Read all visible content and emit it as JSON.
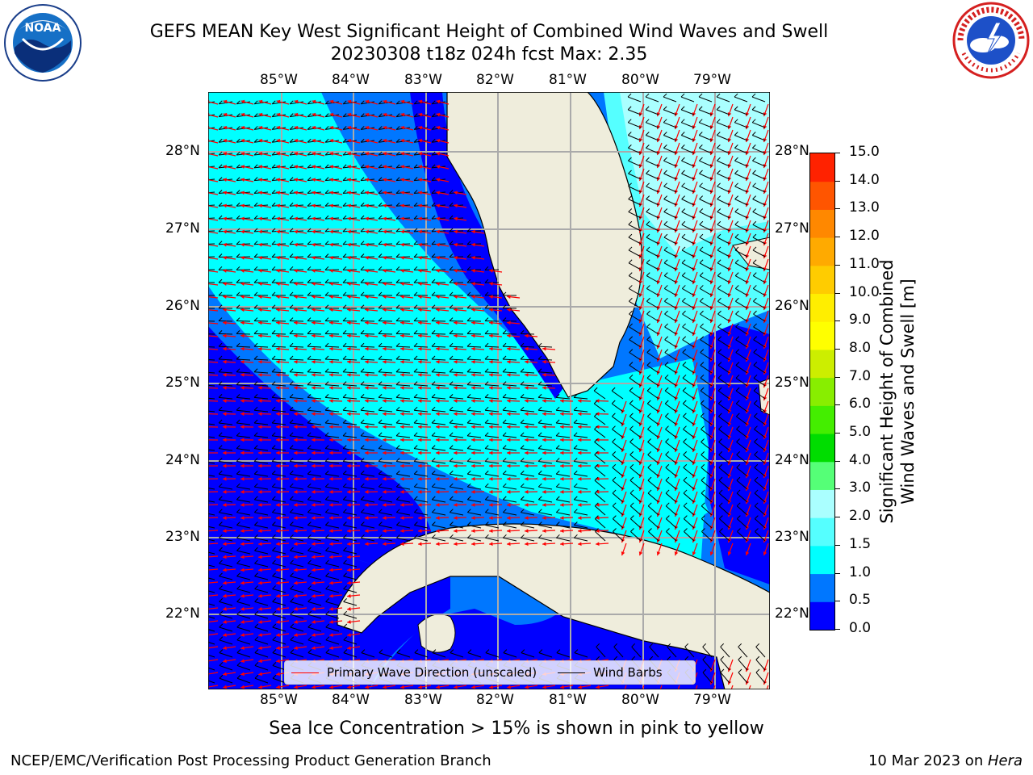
{
  "title_line1": "GEFS MEAN Key West Significant Height of Combined Wind Waves and Swell",
  "title_line2": "20230308 t18z 024h fcst   Max: 2.35",
  "logos": {
    "left": "NOAA",
    "right": "NATIONAL WEATHER SERVICE"
  },
  "map": {
    "lon_labels": [
      "85°W",
      "84°W",
      "83°W",
      "82°W",
      "81°W",
      "80°W",
      "79°W"
    ],
    "lat_labels": [
      "28°N",
      "27°N",
      "26°N",
      "25°N",
      "24°N",
      "23°N",
      "22°N"
    ],
    "land_color": "#efeddc",
    "legend": {
      "wave_label": "Primary Wave Direction (unscaled)",
      "barb_label": "Wind Barbs",
      "wave_color": "#ff0000",
      "barb_color": "#000000"
    }
  },
  "colorbar": {
    "title_line1": "Significant Height of Combined",
    "title_line2": "Wind Waves and Swell [m]",
    "ticks": [
      "0.0",
      "0.5",
      "1.0",
      "1.5",
      "2.0",
      "3.0",
      "4.0",
      "5.0",
      "6.0",
      "7.0",
      "8.0",
      "9.0",
      "10.0",
      "11.0",
      "12.0",
      "13.0",
      "14.0",
      "15.0"
    ],
    "colors": [
      "#0000ff",
      "#0077ff",
      "#00ffff",
      "#55ffff",
      "#aaffff",
      "#55ff77",
      "#00dd00",
      "#44ee00",
      "#88ee00",
      "#ccee00",
      "#ffff00",
      "#ffee00",
      "#ffcc00",
      "#ffaa00",
      "#ff8800",
      "#ff5500",
      "#ff2200"
    ]
  },
  "note": "Sea Ice Concentration > 15% is shown in pink to yellow",
  "footer_left": "NCEP/EMC/Verification Post Processing Product Generation Branch",
  "footer_right_date": "10 Mar 2023 on ",
  "footer_right_host": "Hera"
}
